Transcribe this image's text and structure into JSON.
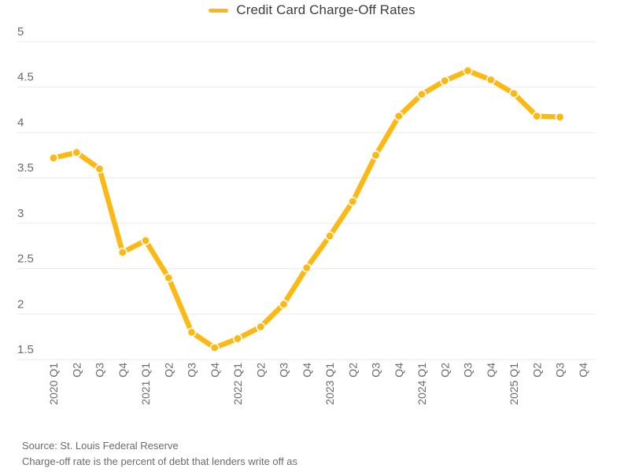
{
  "legend": {
    "label": "Credit Card Charge-Off Rates"
  },
  "colors": {
    "series": "#FCB813",
    "gridline": "#EBEBEB",
    "axis_text": "#6B6B6B",
    "title_text": "#3D3D3D",
    "footer_text": "#6B6B6B",
    "background": "#FFFFFF"
  },
  "footer": {
    "source": "Source: St. Louis Federal Reserve",
    "note": "Charge-off rate is the percent of debt that lenders write off as"
  },
  "chart_data": {
    "type": "line",
    "title": "Credit Card Charge-Off Rates",
    "series": [
      {
        "name": "Credit Card Charge-Off Rates",
        "values": [
          3.72,
          3.78,
          3.6,
          2.68,
          2.81,
          2.4,
          1.8,
          1.63,
          1.73,
          1.86,
          2.11,
          2.51,
          2.86,
          3.24,
          3.75,
          4.18,
          4.42,
          4.57,
          4.68,
          4.58,
          4.43,
          4.18,
          4.17,
          null
        ]
      }
    ],
    "categories": [
      "2020 Q1",
      "Q2",
      "Q3",
      "Q4",
      "2021 Q1",
      "Q2",
      "Q3",
      "Q4",
      "2022 Q1",
      "Q2",
      "Q3",
      "Q4",
      "2023 Q1",
      "Q2",
      "Q3",
      "Q4",
      "2024 Q1",
      "Q2",
      "Q3",
      "Q4",
      "2025 Q1",
      "Q2",
      "Q3",
      "Q4"
    ],
    "xlabel": "",
    "ylabel": "",
    "ylim": [
      1.5,
      5
    ],
    "yticks": [
      5,
      4.5,
      4,
      3.5,
      3,
      2.5,
      2,
      1.5
    ],
    "grid": "horizontal",
    "legend_position": "top",
    "marker": "circle",
    "x_tick_rotation": -90
  }
}
